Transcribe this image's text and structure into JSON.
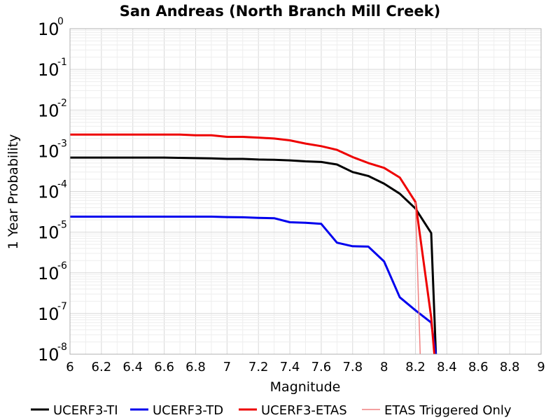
{
  "chart_data": {
    "type": "line",
    "title": "San Andreas (North Branch Mill Creek)",
    "xlabel": "Magnitude",
    "ylabel": "1 Year Probability",
    "xlim": [
      6,
      9
    ],
    "ylim": [
      1e-08,
      1
    ],
    "yscale": "log",
    "grid": true,
    "legend_position": "bottom",
    "x_ticks": [
      "6",
      "6.2",
      "6.4",
      "6.6",
      "6.8",
      "7",
      "7.2",
      "7.4",
      "7.6",
      "7.8",
      "8",
      "8.2",
      "8.4",
      "8.6",
      "8.8",
      "9"
    ],
    "y_ticks": [
      {
        "base": "10",
        "exp": "-8",
        "value": 1e-08
      },
      {
        "base": "10",
        "exp": "-7",
        "value": 1e-07
      },
      {
        "base": "10",
        "exp": "-6",
        "value": 1e-06
      },
      {
        "base": "10",
        "exp": "-5",
        "value": 1e-05
      },
      {
        "base": "10",
        "exp": "-4",
        "value": 0.0001
      },
      {
        "base": "10",
        "exp": "-3",
        "value": 0.001
      },
      {
        "base": "10",
        "exp": "-2",
        "value": 0.01
      },
      {
        "base": "10",
        "exp": "-1",
        "value": 0.1
      },
      {
        "base": "10",
        "exp": "0",
        "value": 1
      }
    ],
    "series": [
      {
        "name": "UCERF3-TI",
        "color": "#000000",
        "width": 3,
        "x": [
          6.0,
          6.1,
          6.2,
          6.3,
          6.4,
          6.5,
          6.6,
          6.7,
          6.8,
          6.9,
          7.0,
          7.1,
          7.2,
          7.3,
          7.4,
          7.5,
          7.6,
          7.7,
          7.8,
          7.9,
          8.0,
          8.1,
          8.2,
          8.3,
          8.33
        ],
        "y": [
          0.00068,
          0.00068,
          0.00068,
          0.00068,
          0.00068,
          0.00068,
          0.00068,
          0.00067,
          0.00066,
          0.00065,
          0.00063,
          0.00063,
          0.00061,
          0.0006,
          0.00058,
          0.00055,
          0.00053,
          0.00046,
          0.0003,
          0.00024,
          0.000155,
          8.8e-05,
          3.8e-05,
          9.5e-06,
          1e-08
        ]
      },
      {
        "name": "UCERF3-TD",
        "color": "#0000ee",
        "width": 3,
        "x": [
          6.0,
          6.1,
          6.2,
          6.3,
          6.4,
          6.5,
          6.6,
          6.7,
          6.8,
          6.9,
          7.0,
          7.1,
          7.2,
          7.3,
          7.4,
          7.5,
          7.6,
          7.7,
          7.8,
          7.9,
          8.0,
          8.1,
          8.2,
          8.3,
          8.33
        ],
        "y": [
          2.4e-05,
          2.4e-05,
          2.4e-05,
          2.4e-05,
          2.4e-05,
          2.4e-05,
          2.4e-05,
          2.4e-05,
          2.4e-05,
          2.4e-05,
          2.35e-05,
          2.32e-05,
          2.25e-05,
          2.2e-05,
          1.75e-05,
          1.7e-05,
          1.6e-05,
          5.5e-06,
          4.5e-06,
          4.4e-06,
          1.9e-06,
          2.5e-07,
          1.2e-07,
          6e-08,
          1e-08
        ]
      },
      {
        "name": "UCERF3-ETAS",
        "color": "#ee0000",
        "width": 3,
        "x": [
          6.0,
          6.1,
          6.2,
          6.3,
          6.4,
          6.5,
          6.6,
          6.7,
          6.8,
          6.9,
          7.0,
          7.1,
          7.2,
          7.3,
          7.4,
          7.5,
          7.6,
          7.7,
          7.8,
          7.9,
          8.0,
          8.1,
          8.2,
          8.3,
          8.32
        ],
        "y": [
          0.0025,
          0.0025,
          0.0025,
          0.0025,
          0.0025,
          0.0025,
          0.0025,
          0.0025,
          0.0024,
          0.0024,
          0.0022,
          0.0022,
          0.0021,
          0.002,
          0.0018,
          0.0015,
          0.0013,
          0.00105,
          0.0007,
          0.0005,
          0.00038,
          0.00022,
          5.5e-05,
          8e-08,
          1e-08
        ]
      },
      {
        "name": "ETAS Triggered Only",
        "color": "#f08080",
        "width": 1.5,
        "x": [
          8.2,
          8.23
        ],
        "y": [
          5.5e-05,
          1e-08
        ]
      }
    ]
  }
}
